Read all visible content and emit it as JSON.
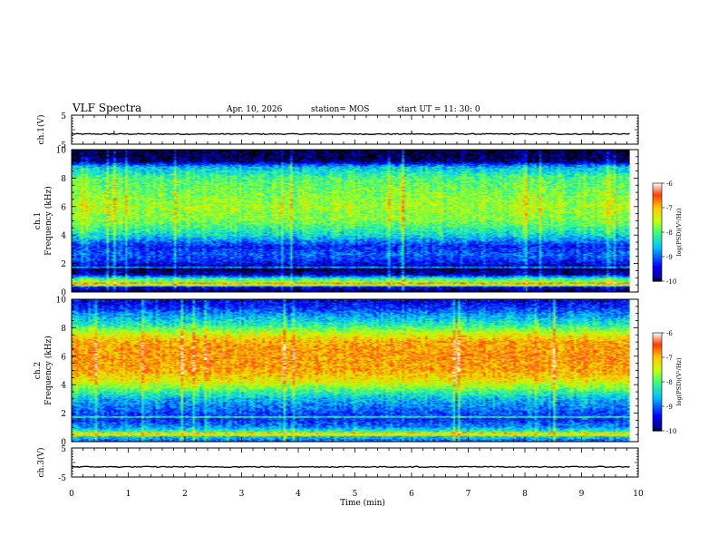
{
  "header": {
    "title": "VLF Spectra",
    "date": "Apr. 10, 2026",
    "station": "station= MOS",
    "start": "start  UT =   11: 30: 0"
  },
  "chart_data": [
    {
      "type": "line",
      "ylabel": "ch.1(V)",
      "ylim": [
        -5,
        5
      ],
      "yticks": [
        "5",
        "-5"
      ],
      "series": [
        {
          "x": [
            0,
            10
          ],
          "y": [
            -1.5,
            -1.5
          ]
        }
      ],
      "spikes_min": [
        0.75,
        6.0,
        9.2
      ]
    },
    {
      "type": "heatmap",
      "ylabel_line1": "ch.1",
      "ylabel_line2": "Frequency (kHz)",
      "ylim": [
        0,
        10
      ],
      "yticks": [
        "0",
        "2",
        "4",
        "6",
        "8",
        "10"
      ],
      "xlim": [
        0,
        9.85
      ],
      "colorbar": {
        "label": "log(PSD)(V²/Hz)",
        "range": [
          -10,
          -6
        ],
        "ticks": [
          "-6",
          "-7",
          "-8",
          "-9",
          "-10"
        ]
      },
      "profile": [
        [
          0,
          -10
        ],
        [
          0.3,
          -9.5
        ],
        [
          0.6,
          -7.6
        ],
        [
          0.9,
          -8.1
        ],
        [
          1.2,
          -9.6
        ],
        [
          1.6,
          -10
        ],
        [
          2.0,
          -9.4
        ],
        [
          2.6,
          -9.0
        ],
        [
          3.2,
          -9.3
        ],
        [
          4.0,
          -8.4
        ],
        [
          5.0,
          -7.8
        ],
        [
          6.0,
          -7.6
        ],
        [
          7.0,
          -7.8
        ],
        [
          8.0,
          -8.0
        ],
        [
          8.8,
          -8.6
        ],
        [
          9.2,
          -9.8
        ],
        [
          9.5,
          -10
        ],
        [
          10,
          -10
        ]
      ]
    },
    {
      "type": "heatmap",
      "ylabel_line1": "ch.2",
      "ylabel_line2": "Frequency (kHz)",
      "ylim": [
        0,
        10
      ],
      "yticks": [
        "0",
        "2",
        "4",
        "6",
        "8",
        "10"
      ],
      "xlim": [
        0,
        9.85
      ],
      "colorbar": {
        "label": "log(PSD)(V²/Hz)",
        "range": [
          -10,
          -6
        ],
        "ticks": [
          "-6",
          "-7",
          "-8",
          "-9",
          "-10"
        ]
      },
      "profile": [
        [
          0,
          -9.0
        ],
        [
          0.6,
          -8.0
        ],
        [
          1.0,
          -8.8
        ],
        [
          1.6,
          -9.3
        ],
        [
          2.2,
          -9.0
        ],
        [
          3.0,
          -8.6
        ],
        [
          3.6,
          -8.0
        ],
        [
          4.2,
          -7.3
        ],
        [
          5.0,
          -6.9
        ],
        [
          6.0,
          -6.8
        ],
        [
          7.0,
          -6.9
        ],
        [
          7.6,
          -7.4
        ],
        [
          8.2,
          -8.2
        ],
        [
          9.0,
          -8.8
        ],
        [
          9.5,
          -9.3
        ],
        [
          10,
          -9.5
        ]
      ]
    },
    {
      "type": "line",
      "ylabel": "ch.3(V)",
      "ylim": [
        -5,
        5
      ],
      "yticks": [
        "5",
        "-5"
      ],
      "series": [
        {
          "x": [
            0,
            10
          ],
          "y": [
            -1.5,
            -1.5
          ]
        }
      ]
    }
  ],
  "xaxis": {
    "label": "Time (min)",
    "ticks": [
      "0",
      "1",
      "2",
      "3",
      "4",
      "5",
      "6",
      "7",
      "8",
      "9",
      "10"
    ],
    "xlim": [
      0,
      10
    ]
  }
}
